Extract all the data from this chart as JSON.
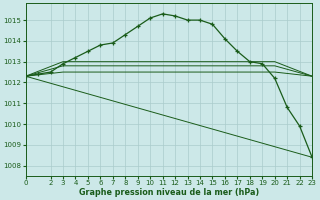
{
  "background_color": "#cce8e8",
  "grid_color": "#aacccc",
  "line_color": "#1a5c1a",
  "marker_color": "#1a5c1a",
  "title": "Graphe pression niveau de la mer (hPa)",
  "xlim": [
    0,
    23
  ],
  "ylim": [
    1007.5,
    1015.8
  ],
  "yticks": [
    1008,
    1009,
    1010,
    1011,
    1012,
    1013,
    1014,
    1015
  ],
  "xticks": [
    0,
    2,
    3,
    4,
    5,
    6,
    7,
    8,
    9,
    10,
    11,
    12,
    13,
    14,
    15,
    16,
    17,
    18,
    19,
    20,
    21,
    22,
    23
  ],
  "main_x": [
    0,
    1,
    2,
    3,
    4,
    5,
    6,
    7,
    8,
    9,
    10,
    11,
    12,
    13,
    14,
    15,
    16,
    17,
    18,
    19,
    20,
    21,
    22,
    23
  ],
  "main_y": [
    1012.3,
    1012.4,
    1012.5,
    1012.9,
    1013.2,
    1013.5,
    1013.8,
    1013.9,
    1014.3,
    1014.7,
    1015.1,
    1015.3,
    1015.2,
    1015.0,
    1015.0,
    1014.8,
    1014.1,
    1013.5,
    1013.0,
    1012.9,
    1012.2,
    1010.8,
    1009.9,
    1008.4
  ],
  "line2_x": [
    0,
    23
  ],
  "line2_y": [
    1012.3,
    1008.4
  ],
  "line3_x": [
    0,
    3,
    20,
    23
  ],
  "line3_y": [
    1012.3,
    1012.5,
    1012.5,
    1012.3
  ],
  "line4_x": [
    0,
    3,
    20,
    23
  ],
  "line4_y": [
    1012.3,
    1012.8,
    1012.8,
    1012.3
  ],
  "line5_x": [
    0,
    3,
    20,
    23
  ],
  "line5_y": [
    1012.3,
    1013.0,
    1013.0,
    1012.3
  ]
}
